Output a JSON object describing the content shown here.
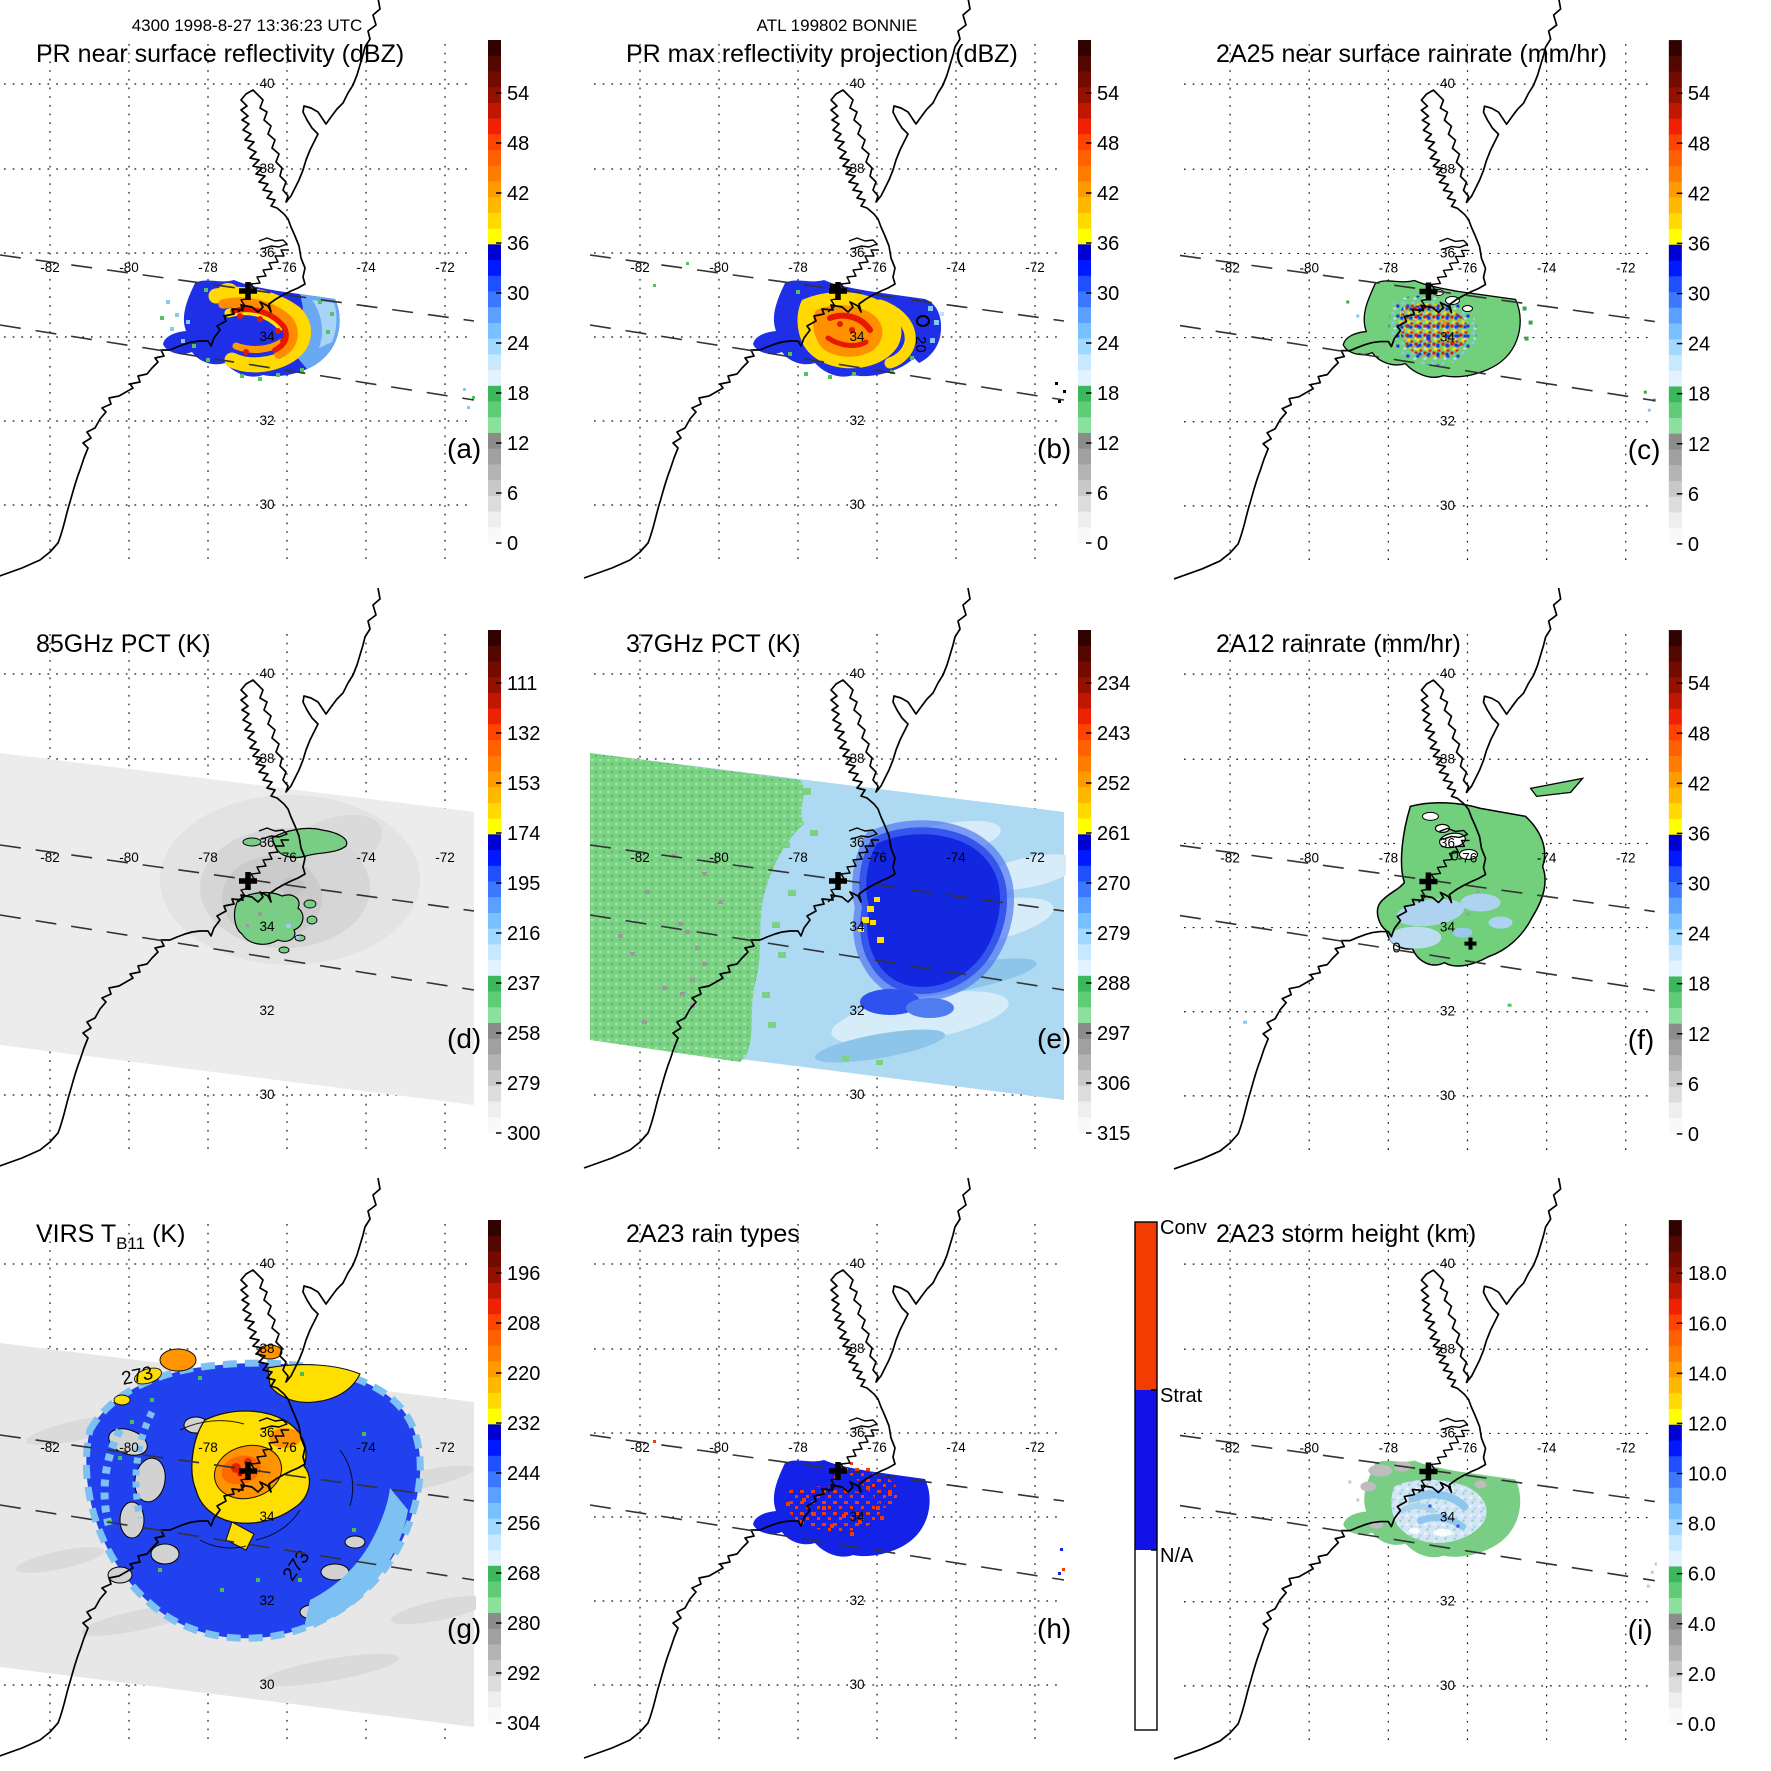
{
  "header": {
    "left": "4300 1998-8-27 13:36:23 UTC",
    "center": "ATL 199802 BONNIE"
  },
  "map": {
    "lat_labels": [
      "40",
      "38",
      "36",
      "34",
      "32",
      "30"
    ],
    "lon_labels": [
      "-82",
      "-80",
      "-78",
      "-76",
      "-74",
      "-72"
    ]
  },
  "panels": {
    "a": {
      "letter": "(a)",
      "title": "PR near surface reflectivity (dBZ)",
      "ticks": [
        "54",
        "48",
        "42",
        "36",
        "30",
        "24",
        "18",
        "12",
        "6",
        "0"
      ]
    },
    "b": {
      "letter": "(b)",
      "title": "PR max reflectivity projection (dBZ)",
      "ticks": [
        "54",
        "48",
        "42",
        "36",
        "30",
        "24",
        "18",
        "12",
        "6",
        "0"
      ],
      "contour_label": "20"
    },
    "c": {
      "letter": "(c)",
      "title": "2A25 near surface rainrate (mm/hr)",
      "ticks": [
        "54",
        "48",
        "42",
        "36",
        "30",
        "24",
        "18",
        "12",
        "6",
        "0"
      ]
    },
    "d": {
      "letter": "(d)",
      "title": "85GHz PCT (K)",
      "ticks": [
        "111",
        "132",
        "153",
        "174",
        "195",
        "216",
        "237",
        "258",
        "279",
        "300"
      ]
    },
    "e": {
      "letter": "(e)",
      "title": "37GHz PCT (K)",
      "ticks": [
        "234",
        "243",
        "252",
        "261",
        "270",
        "279",
        "288",
        "297",
        "306",
        "315"
      ]
    },
    "f": {
      "letter": "(f)",
      "title": "2A12 rainrate (mm/hr)",
      "ticks": [
        "54",
        "48",
        "42",
        "36",
        "30",
        "24",
        "18",
        "12",
        "6",
        "0"
      ],
      "contour_labels": [
        "0",
        "0"
      ]
    },
    "g": {
      "letter": "(g)",
      "title_main": "VIRS T",
      "title_sub": "B11",
      "title_tail": " (K)",
      "ticks": [
        "196",
        "208",
        "220",
        "232",
        "244",
        "256",
        "268",
        "280",
        "292",
        "304"
      ],
      "contour_labels": [
        "273",
        "273"
      ]
    },
    "h": {
      "letter": "(h)",
      "title": "2A23 rain types",
      "cb_labels": [
        "Conv",
        "Strat",
        "N/A"
      ]
    },
    "i": {
      "letter": "(i)",
      "title": "2A23 storm height (km)",
      "ticks": [
        "18.0",
        "16.0",
        "14.0",
        "12.0",
        "10.0",
        "8.0",
        "6.0",
        "4.0",
        "2.0",
        "0.0"
      ]
    }
  },
  "colors": {
    "colorbar_stack": [
      "#300300",
      "#520700",
      "#740b00",
      "#941000",
      "#c01800",
      "#ee2200",
      "#ff4400",
      "#ff6000",
      "#ff7c00",
      "#ff9a00",
      "#ffb800",
      "#ffd900",
      "#ffff00",
      "#0000d2",
      "#0018ff",
      "#1e50ff",
      "#3c78ff",
      "#5aa0ff",
      "#78c0ff",
      "#a0d8ff",
      "#c8e8ff",
      "#e2f2ff",
      "#3cb85c",
      "#5fcc76",
      "#8ae09c",
      "#8c8c8c",
      "#a0a0a0",
      "#b4b4b4",
      "#c8c8c8",
      "#dcdcdc",
      "#eeeeee",
      "#f9f9f9"
    ],
    "rain_conv": "#f23c00",
    "rain_strat": "#1212e6",
    "rain_na": "#ffffff"
  },
  "chart_data": [
    {
      "panel": "a",
      "type": "heatmap",
      "title": "PR near surface reflectivity (dBZ)",
      "units": "dBZ",
      "colorbar_ticks": [
        54,
        48,
        42,
        36,
        30,
        24,
        18,
        12,
        6,
        0
      ],
      "lon_range": [
        -83.3,
        -70.6
      ],
      "lat_range": [
        28.6,
        41.3
      ],
      "grid": "on",
      "overpass": "4300 1998-8-27 13:36:23 UTC",
      "storm": "ATL 199802 BONNIE",
      "notes": "narrow PR swath over NC coast; blue stratiform with yellow-orange-red convective spiral bands near 34N 77W"
    },
    {
      "panel": "b",
      "type": "heatmap",
      "title": "PR max reflectivity projection (dBZ)",
      "units": "dBZ",
      "colorbar_ticks": [
        54,
        48,
        42,
        36,
        30,
        24,
        18,
        12,
        6,
        0
      ],
      "lon_range": [
        -83.3,
        -70.6
      ],
      "lat_range": [
        28.6,
        41.3
      ],
      "grid": "on",
      "notes": "same swath, mostly 36-48 dBZ yellow/orange core with 20 dBZ contour circle east of storm"
    },
    {
      "panel": "c",
      "type": "heatmap",
      "title": "2A25 near surface rainrate (mm/hr)",
      "units": "mm/hr",
      "colorbar_ticks": [
        54,
        48,
        42,
        36,
        30,
        24,
        18,
        12,
        6,
        0
      ],
      "lon_range": [
        -83.3,
        -70.6
      ],
      "lat_range": [
        28.6,
        41.3
      ],
      "grid": "on",
      "notes": "green light-rain swath with speckled red/orange/blue heavy-rain core"
    },
    {
      "panel": "d",
      "type": "heatmap",
      "title": "85GHz PCT (K)",
      "units": "K",
      "colorbar_ticks": [
        111,
        132,
        153,
        174,
        195,
        216,
        237,
        258,
        279,
        300
      ],
      "lon_range": [
        -83.3,
        -70.6
      ],
      "lat_range": [
        28.6,
        41.3
      ],
      "grid": "on",
      "notes": "wide TMI swath, gray field with green (~237K) ice-scattering patches near storm center"
    },
    {
      "panel": "e",
      "type": "heatmap",
      "title": "37GHz PCT (K)",
      "units": "K",
      "colorbar_ticks": [
        234,
        243,
        252,
        261,
        270,
        279,
        288,
        297,
        306,
        315
      ],
      "lon_range": [
        -83.3,
        -70.6
      ],
      "lat_range": [
        28.6,
        41.3
      ],
      "grid": "on",
      "notes": "green land (~288K) west, light blue ocean east, dark blue (~270K) storm core with few yellow (~261K) pixels"
    },
    {
      "panel": "f",
      "type": "heatmap",
      "title": "2A12 rainrate (mm/hr)",
      "units": "mm/hr",
      "colorbar_ticks": [
        54,
        48,
        42,
        36,
        30,
        24,
        18,
        12,
        6,
        0
      ],
      "lon_range": [
        -83.3,
        -70.6
      ],
      "lat_range": [
        28.6,
        41.3
      ],
      "grid": "on",
      "notes": "green <6 mm/hr blob with light-blue ~9-12 mm/hr patches; 0 contour labels"
    },
    {
      "panel": "g",
      "type": "heatmap",
      "title": "VIRS TB11 (K)",
      "units": "K",
      "colorbar_ticks": [
        196,
        208,
        220,
        232,
        244,
        256,
        268,
        280,
        292,
        304
      ],
      "lon_range": [
        -83.3,
        -70.6
      ],
      "lat_range": [
        28.6,
        41.3
      ],
      "grid": "on",
      "notes": "full hurricane cloud shield: blue 244-256K canopy, yellow <232K ring, orange/red <220K core, 273K contour labels"
    },
    {
      "panel": "h",
      "type": "heatmap",
      "title": "2A23 rain types",
      "units": "category",
      "categories": [
        "Conv",
        "Strat",
        "N/A"
      ],
      "lon_range": [
        -83.3,
        -70.6
      ],
      "lat_range": [
        28.6,
        41.3
      ],
      "grid": "on",
      "notes": "stratiform (blue) swath with convective (orange-red) spiral band speckles"
    },
    {
      "panel": "i",
      "type": "heatmap",
      "title": "2A23 storm height (km)",
      "units": "km",
      "colorbar_ticks": [
        18.0,
        16.0,
        14.0,
        12.0,
        10.0,
        8.0,
        6.0,
        4.0,
        2.0,
        0.0
      ],
      "lon_range": [
        -83.3,
        -70.6
      ],
      "lat_range": [
        28.6,
        41.3
      ],
      "grid": "on",
      "notes": "mostly 6-10 km (green/pale blue) echo tops with gray 2-4 km patches"
    }
  ]
}
